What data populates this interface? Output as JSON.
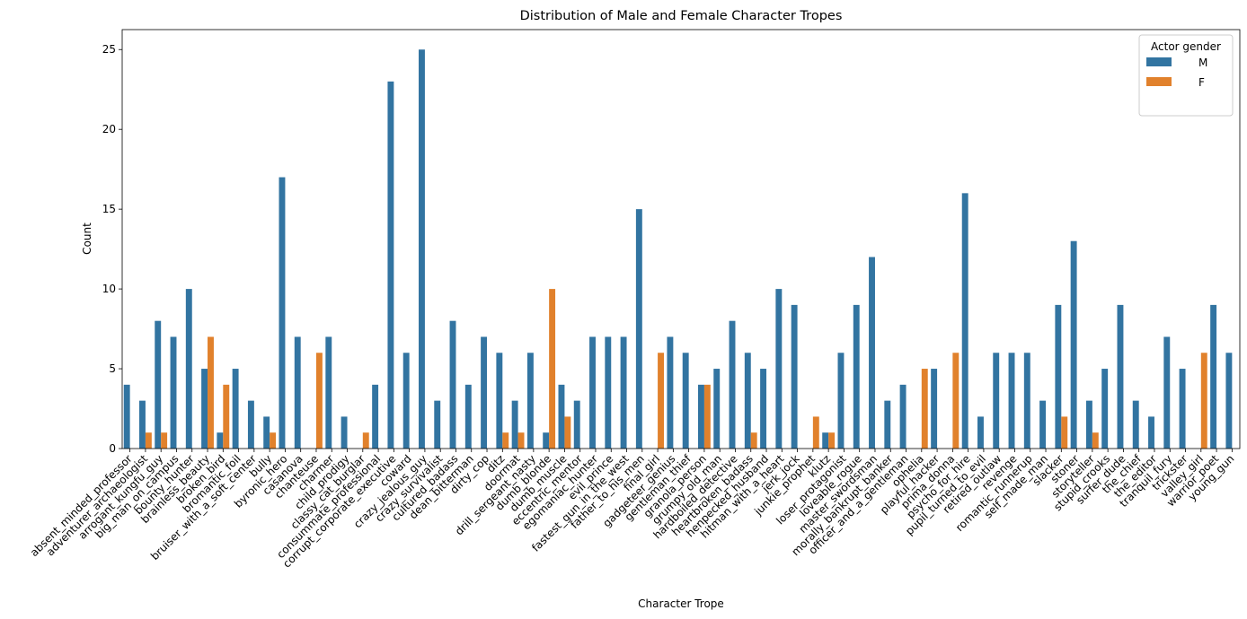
{
  "chart_data": {
    "type": "bar",
    "title": "Distribution of Male and Female Character Tropes",
    "xlabel": "Character Trope",
    "ylabel": "Count",
    "ylim": [
      0,
      26.25
    ],
    "yticks": [
      0,
      5,
      10,
      15,
      20,
      25
    ],
    "grid": false,
    "legend": {
      "title": "Actor gender",
      "placement": "top-right"
    },
    "categories": [
      "absent_minded_professor",
      "adventurer_archaeologist",
      "arrogant_kungfu_guy",
      "big_man_on_campus",
      "bounty_hunter",
      "brainless_beauty",
      "broken_bird",
      "bromantic_foil",
      "bruiser_with_a_soft_center",
      "bully",
      "byronic_hero",
      "casanova",
      "chanteuse",
      "charmer",
      "child_prodigy",
      "classy_cat_burglar",
      "consummate_professional",
      "corrupt_corporate_executive",
      "coward",
      "crazy_jealous_guy",
      "crazy_survivalist",
      "cultured_badass",
      "dean_bitterman",
      "dirty_cop",
      "ditz",
      "doormat",
      "drill_sergeant_nasty",
      "dumb_blonde",
      "dumb_muscle",
      "eccentric_mentor",
      "egomaniac_hunter",
      "evil_prince",
      "fastest_gun_in_the_west",
      "father_to_his_men",
      "final_girl",
      "gadgeteer_genius",
      "gentleman_thief",
      "granola_person",
      "grumpy_old_man",
      "hardboiled_detective",
      "heartbroken_badass",
      "henpecked_husband",
      "hitman_with_a_heart",
      "jerk_jock",
      "junkie_prophet",
      "klutz",
      "loser_protagonist",
      "loveable_rogue",
      "master_swordsman",
      "morally_bankrupt_banker",
      "officer_and_a_gentleman",
      "ophelia",
      "playful_hacker",
      "prima_donna",
      "psycho_for_hire",
      "pupil_turned_to_evil",
      "retired_outlaw",
      "revenge",
      "romantic_runnerup",
      "self_made_man",
      "slacker",
      "stoner",
      "storyteller",
      "stupid_crooks",
      "surfer_dude",
      "the_chief",
      "the_editor",
      "tranquil_fury",
      "trickster",
      "valley_girl",
      "warrior_poet",
      "young_gun"
    ],
    "series": [
      {
        "name": "M",
        "color": "#3274a1",
        "values": [
          4,
          3,
          8,
          7,
          10,
          5,
          1,
          5,
          3,
          2,
          17,
          7,
          0,
          7,
          2,
          0,
          4,
          23,
          6,
          25,
          3,
          8,
          4,
          7,
          6,
          3,
          6,
          1,
          4,
          3,
          7,
          7,
          7,
          15,
          0,
          7,
          6,
          4,
          5,
          8,
          6,
          5,
          10,
          9,
          0,
          1,
          6,
          9,
          12,
          3,
          4,
          0,
          5,
          0,
          16,
          2,
          6,
          6,
          6,
          3,
          9,
          13,
          3,
          5,
          9,
          3,
          2,
          7,
          5,
          0,
          9,
          6
        ]
      },
      {
        "name": "F",
        "color": "#e1812c",
        "values": [
          0,
          1,
          1,
          0,
          0,
          7,
          4,
          0,
          0,
          1,
          0,
          0,
          6,
          0,
          0,
          1,
          0,
          0,
          0,
          0,
          0,
          0,
          0,
          0,
          1,
          1,
          0,
          10,
          2,
          0,
          0,
          0,
          0,
          0,
          6,
          0,
          0,
          4,
          0,
          0,
          1,
          0,
          0,
          0,
          2,
          1,
          0,
          0,
          0,
          0,
          0,
          5,
          0,
          6,
          0,
          0,
          0,
          0,
          0,
          0,
          2,
          0,
          1,
          0,
          0,
          0,
          0,
          0,
          0,
          6,
          0,
          0
        ]
      }
    ]
  }
}
